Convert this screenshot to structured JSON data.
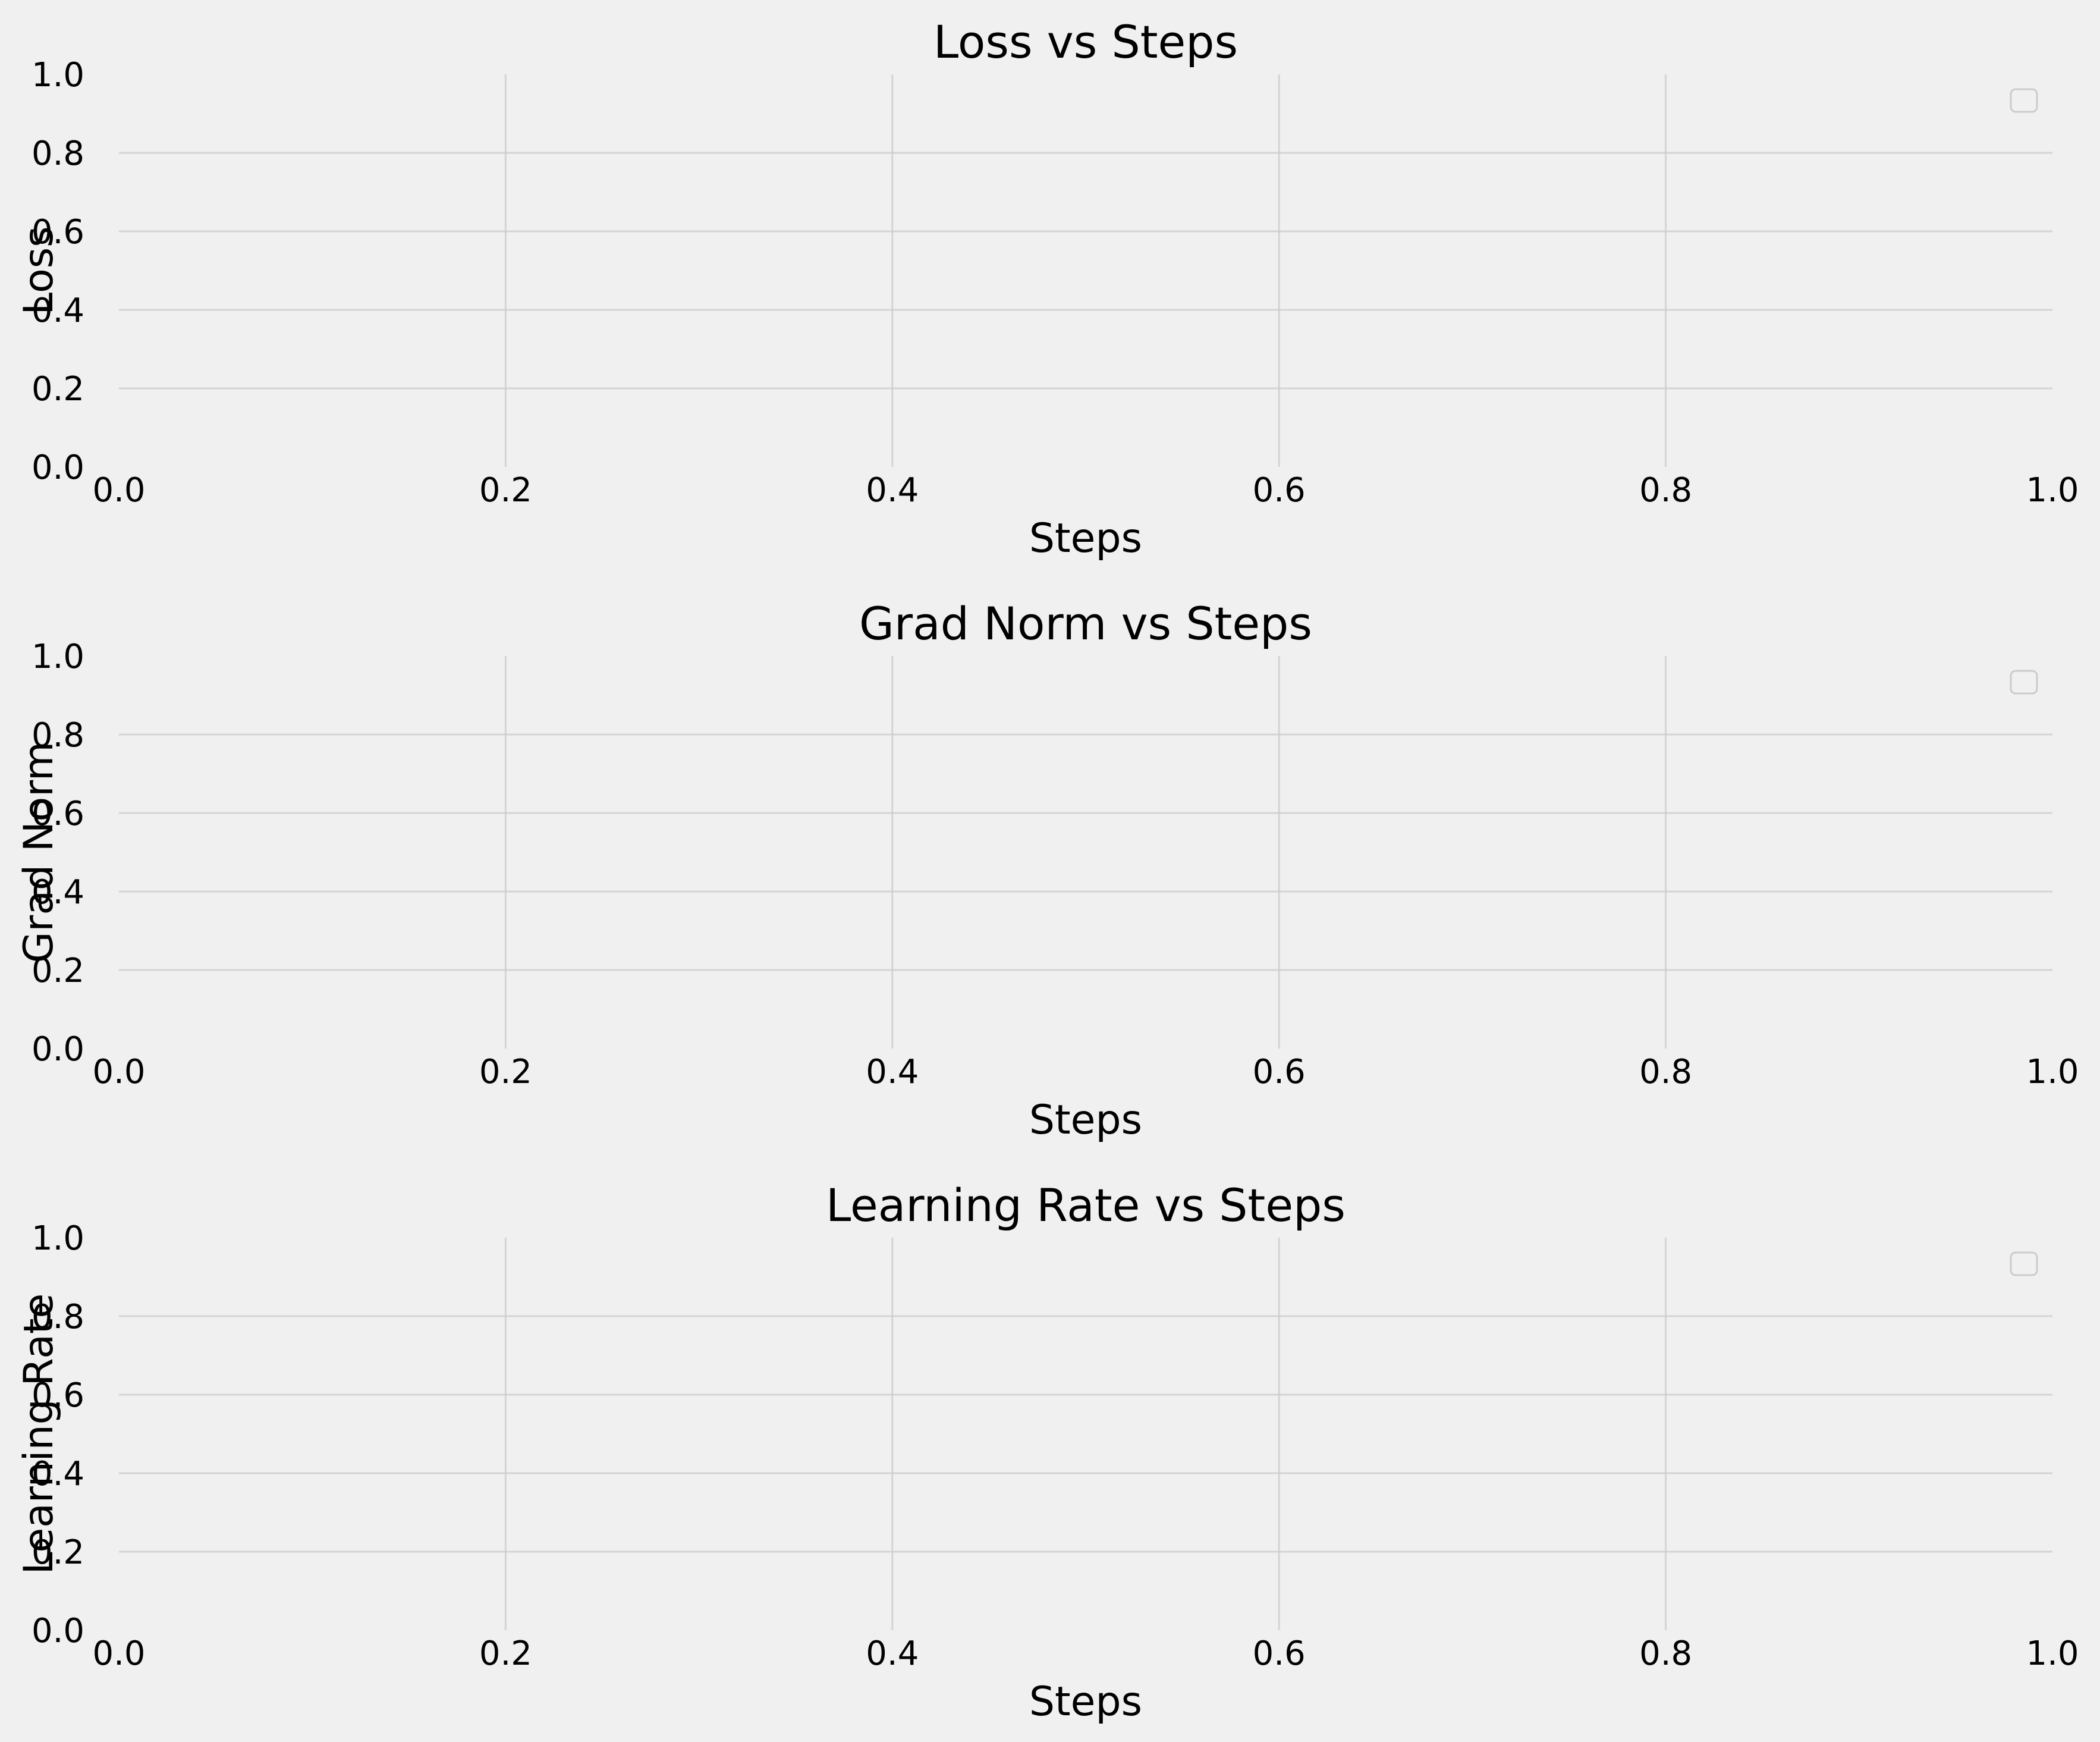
{
  "chart_data": [
    {
      "type": "line",
      "title": "Loss vs Steps",
      "xlabel": "Steps",
      "ylabel": "Loss",
      "xlim": [
        0,
        1
      ],
      "ylim": [
        0,
        1
      ],
      "xticks": [
        "0.0",
        "0.2",
        "0.4",
        "0.6",
        "0.8",
        "1.0"
      ],
      "yticks": [
        "0.0",
        "0.2",
        "0.4",
        "0.6",
        "0.8",
        "1.0"
      ],
      "series": [],
      "grid": true,
      "legend": "upper right (empty)"
    },
    {
      "type": "line",
      "title": "Grad Norm vs Steps",
      "xlabel": "Steps",
      "ylabel": "Grad Norm",
      "xlim": [
        0,
        1
      ],
      "ylim": [
        0,
        1
      ],
      "xticks": [
        "0.0",
        "0.2",
        "0.4",
        "0.6",
        "0.8",
        "1.0"
      ],
      "yticks": [
        "0.0",
        "0.2",
        "0.4",
        "0.6",
        "0.8",
        "1.0"
      ],
      "series": [],
      "grid": true,
      "legend": "upper right (empty)"
    },
    {
      "type": "line",
      "title": "Learning Rate vs Steps",
      "xlabel": "Steps",
      "ylabel": "Learning Rate",
      "xlim": [
        0,
        1
      ],
      "ylim": [
        0,
        1
      ],
      "xticks": [
        "0.0",
        "0.2",
        "0.4",
        "0.6",
        "0.8",
        "1.0"
      ],
      "yticks": [
        "0.0",
        "0.2",
        "0.4",
        "0.6",
        "0.8",
        "1.0"
      ],
      "series": [],
      "grid": true,
      "legend": "upper right (empty)"
    }
  ],
  "colors": {
    "background": "#f0f0f0",
    "grid": "#cbcbcb",
    "text": "#000000",
    "legend_border": "#cccccc"
  }
}
